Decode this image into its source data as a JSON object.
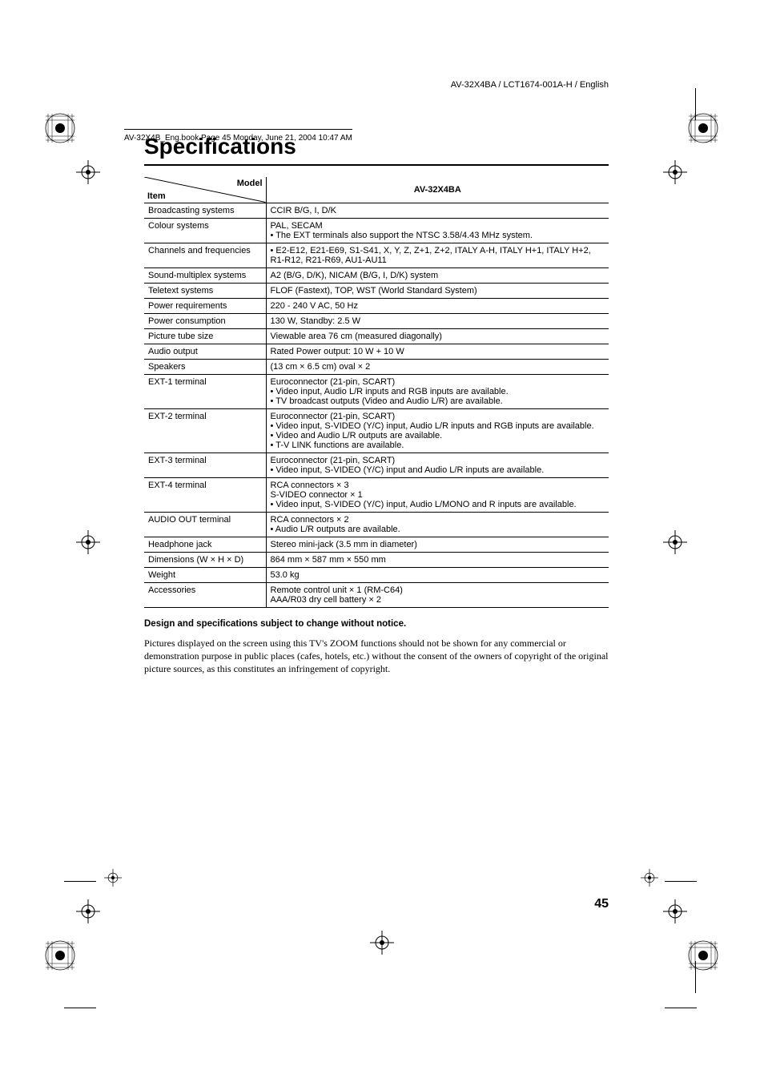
{
  "doc_id": "AV-32X4BA / LCT1674-001A-H / English",
  "book_header": "AV-32X4B_Eng.book  Page 45  Monday, June 21, 2004  10:47 AM",
  "title": "Specifications",
  "header": {
    "item": "Item",
    "model": "Model",
    "model_value": "AV-32X4BA"
  },
  "rows": [
    {
      "item": "Broadcasting systems",
      "value": "CCIR B/G, I, D/K"
    },
    {
      "item": "Colour systems",
      "value": "PAL, SECAM\n• The EXT terminals also support the NTSC 3.58/4.43 MHz system."
    },
    {
      "item": "Channels and frequencies",
      "value": "• E2-E12, E21-E69, S1-S41, X, Y, Z, Z+1, Z+2, ITALY A-H, ITALY H+1, ITALY H+2, R1-R12, R21-R69, AU1-AU11"
    },
    {
      "item": "Sound-multiplex systems",
      "value": "A2 (B/G, D/K), NICAM (B/G, I, D/K) system"
    },
    {
      "item": "Teletext systems",
      "value": "FLOF (Fastext), TOP, WST (World Standard System)"
    },
    {
      "item": "Power requirements",
      "value": "220 - 240 V AC, 50 Hz"
    },
    {
      "item": "Power consumption",
      "value": "130 W, Standby: 2.5 W"
    },
    {
      "item": "Picture tube size",
      "value": "Viewable area 76 cm (measured diagonally)"
    },
    {
      "item": "Audio output",
      "value": "Rated Power output: 10 W + 10 W"
    },
    {
      "item": "Speakers",
      "value": "(13 cm × 6.5 cm) oval × 2"
    },
    {
      "item": "EXT-1 terminal",
      "value": "Euroconnector (21-pin, SCART)\n• Video input, Audio L/R inputs and RGB inputs are available.\n• TV broadcast outputs (Video and Audio L/R) are available."
    },
    {
      "item": "EXT-2 terminal",
      "value": "Euroconnector (21-pin, SCART)\n• Video input, S-VIDEO (Y/C) input, Audio L/R inputs and RGB inputs are available.\n• Video and Audio L/R outputs are available.\n• T-V LINK functions are available."
    },
    {
      "item": "EXT-3 terminal",
      "value": "Euroconnector (21-pin, SCART)\n• Video input, S-VIDEO (Y/C) input and Audio L/R inputs are available."
    },
    {
      "item": "EXT-4 terminal",
      "value": "RCA connectors × 3\nS-VIDEO connector × 1\n• Video input, S-VIDEO (Y/C) input, Audio L/MONO and R inputs are available."
    },
    {
      "item": "AUDIO OUT terminal",
      "value": "RCA connectors × 2\n• Audio L/R outputs are available."
    },
    {
      "item": "Headphone jack",
      "value": "Stereo mini-jack (3.5 mm in diameter)"
    },
    {
      "item": "Dimensions (W × H × D)",
      "value": "864 mm × 587 mm × 550 mm"
    },
    {
      "item": "Weight",
      "value": "53.0 kg"
    },
    {
      "item": "Accessories",
      "value": "Remote control unit × 1 (RM-C64)\nAAA/R03 dry cell battery × 2"
    }
  ],
  "notice_bold": "Design and specifications subject to change without notice.",
  "body": "Pictures displayed on the screen using this TV's ZOOM functions should not be shown for any commercial or demonstration purpose in public places (cafes, hotels, etc.) without the consent of the owners of copyright of the original picture sources, as this constitutes an infringement of copyright.",
  "page_number": "45",
  "colors": {
    "text": "#000000",
    "bg": "#ffffff"
  }
}
